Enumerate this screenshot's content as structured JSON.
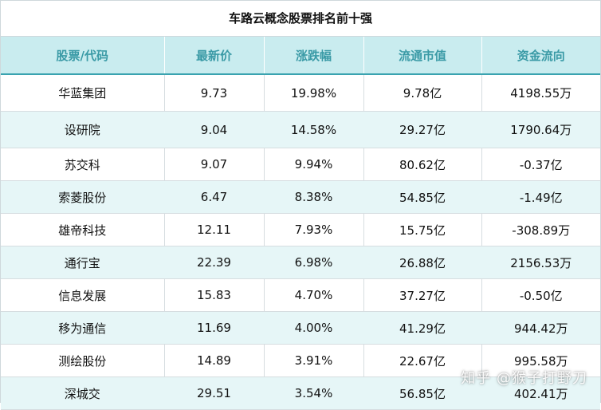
{
  "table": {
    "title": "车路云概念股票排名前十强",
    "headers": [
      "股票/代码",
      "最新价",
      "涨跌幅",
      "流通市值",
      "资金流向"
    ],
    "rows": [
      {
        "name": "华蓝集团",
        "price": "9.73",
        "change": "19.98%",
        "cap": "9.78亿",
        "flow": "4198.55万"
      },
      {
        "name": "设研院",
        "price": "9.04",
        "change": "14.58%",
        "cap": "29.27亿",
        "flow": "1790.64万"
      },
      {
        "name": "苏交科",
        "price": "9.07",
        "change": "9.94%",
        "cap": "80.62亿",
        "flow": "-0.37亿"
      },
      {
        "name": "索菱股份",
        "price": "6.47",
        "change": "8.38%",
        "cap": "54.85亿",
        "flow": "-1.49亿"
      },
      {
        "name": "雄帝科技",
        "price": "12.11",
        "change": "7.93%",
        "cap": "15.75亿",
        "flow": "-308.89万"
      },
      {
        "name": "通行宝",
        "price": "22.39",
        "change": "6.98%",
        "cap": "26.88亿",
        "flow": "2156.53万"
      },
      {
        "name": "信息发展",
        "price": "15.83",
        "change": "4.70%",
        "cap": "37.27亿",
        "flow": "-0.50亿"
      },
      {
        "name": "移为通信",
        "price": "11.69",
        "change": "4.00%",
        "cap": "41.29亿",
        "flow": "944.42万"
      },
      {
        "name": "测绘股份",
        "price": "14.89",
        "change": "3.91%",
        "cap": "22.67亿",
        "flow": "995.58万"
      },
      {
        "name": "深城交",
        "price": "29.51",
        "change": "3.54%",
        "cap": "56.85亿",
        "flow": "402.41万"
      }
    ]
  },
  "watermark": "知乎 @猴子打野刀",
  "colors": {
    "header_bg": "#c9ecef",
    "header_text": "#3a9aa6",
    "alt_row_bg": "#e6f6f7"
  }
}
